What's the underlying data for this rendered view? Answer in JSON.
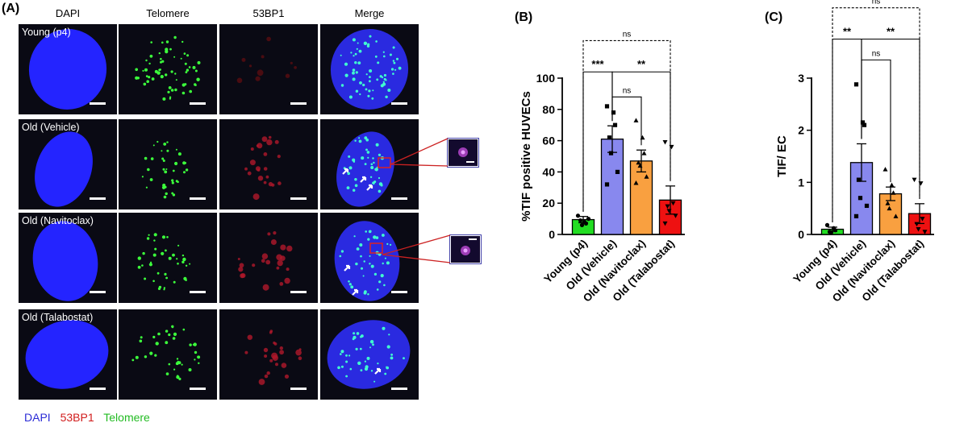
{
  "panel_a": {
    "letter": "(A)",
    "column_headers": [
      "DAPI",
      "Telomere",
      "53BP1",
      "Merge"
    ],
    "row_labels": [
      "Young (p4)",
      "Old (Vehicle)",
      "Old (Navitoclax)",
      "Old (Talabostat)"
    ],
    "legend": [
      {
        "text": "DAPI",
        "color": "#2b2bd6"
      },
      {
        "text": "53BP1",
        "color": "#d11c1c"
      },
      {
        "text": "Telomere",
        "color": "#22bb22"
      }
    ]
  },
  "chart_data": [
    {
      "panel": "(B)",
      "type": "bar",
      "ylabel": "%TIF positive HUVECs",
      "ylim": [
        0,
        100
      ],
      "yticks": [
        0,
        20,
        40,
        60,
        80,
        100
      ],
      "categories": [
        "Young (p4)",
        "Old (Vehicle)",
        "Old (Navitoclax)",
        "Old (Talabostat)"
      ],
      "colors": [
        "#22dd22",
        "#8888ee",
        "#f9a040",
        "#ee1111"
      ],
      "values": [
        9.5,
        61,
        47,
        22
      ],
      "errors": [
        2,
        8.5,
        7,
        9
      ],
      "points": [
        [
          12,
          8,
          7,
          9,
          6,
          10
        ],
        [
          82,
          78,
          70,
          62,
          52,
          40,
          32
        ],
        [
          73,
          62,
          52,
          46,
          44,
          37,
          33
        ],
        [
          59,
          56,
          20,
          18,
          15,
          12,
          7
        ]
      ],
      "markers": [
        "circle",
        "square",
        "triangle",
        "triangle-down"
      ],
      "significance": [
        {
          "from": 1,
          "to": 2,
          "label": "ns",
          "level": 88
        },
        {
          "from": 1,
          "to": 3,
          "label": "**",
          "level": 104
        },
        {
          "from": 0,
          "to": 1,
          "label": "***",
          "level": 104
        },
        {
          "from": 0,
          "to": 3,
          "label": "ns",
          "level": 124,
          "dashed": true
        }
      ]
    },
    {
      "panel": "(C)",
      "type": "bar",
      "ylabel": "TIF/ EC",
      "ylim": [
        0,
        3
      ],
      "yticks": [
        0,
        1,
        2,
        3
      ],
      "categories": [
        "Young (p4)",
        "Old (Vehicle)",
        "Old (Navitoclax)",
        "Old (Talabostat)"
      ],
      "colors": [
        "#22dd22",
        "#8888ee",
        "#f9a040",
        "#ee1111"
      ],
      "values": [
        0.1,
        1.38,
        0.78,
        0.4
      ],
      "errors": [
        0.04,
        0.36,
        0.13,
        0.19
      ],
      "points": [
        [
          0.18,
          0.12,
          0.08,
          0.05,
          0.04
        ],
        [
          2.88,
          2.15,
          2.1,
          1.05,
          0.7,
          0.55,
          0.35
        ],
        [
          1.25,
          0.95,
          0.8,
          0.6,
          0.5,
          0.35
        ],
        [
          1.05,
          0.98,
          0.3,
          0.2,
          0.1,
          0.05
        ]
      ],
      "markers": [
        "circle",
        "square",
        "triangle",
        "triangle-down"
      ],
      "significance": [
        {
          "from": 1,
          "to": 2,
          "label": "ns",
          "level": 3.35
        },
        {
          "from": 1,
          "to": 3,
          "label": "**",
          "level": 3.75
        },
        {
          "from": 0,
          "to": 1,
          "label": "**",
          "level": 3.75
        },
        {
          "from": 0,
          "to": 3,
          "label": "ns",
          "level": 4.35,
          "dashed": true
        }
      ]
    }
  ]
}
